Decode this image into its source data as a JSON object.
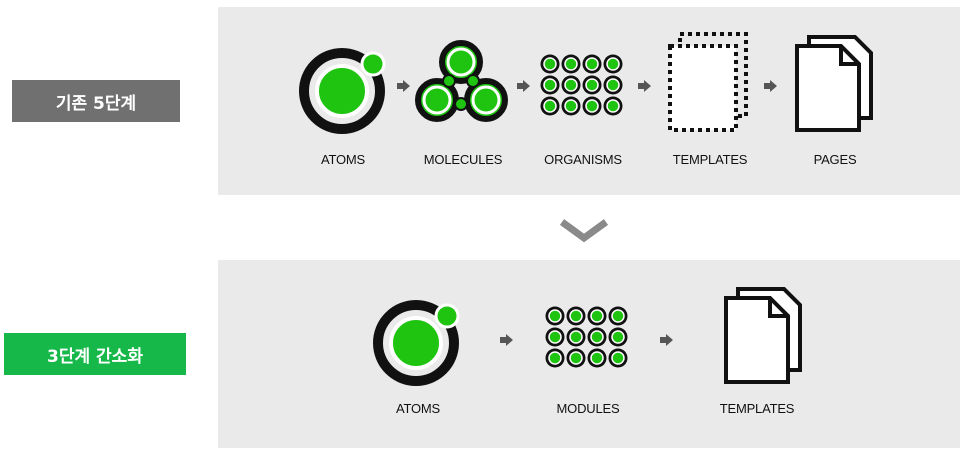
{
  "stages_original": {
    "tag": "기존 5단계",
    "items": [
      {
        "label": "ATOMS",
        "icon": "atom-icon"
      },
      {
        "label": "MOLECULES",
        "icon": "molecule-icon"
      },
      {
        "label": "ORGANISMS",
        "icon": "organism-grid-icon"
      },
      {
        "label": "TEMPLATES",
        "icon": "template-dotted-icon"
      },
      {
        "label": "PAGES",
        "icon": "pages-icon"
      }
    ]
  },
  "stages_simplified": {
    "tag": "3단계 간소화",
    "items": [
      {
        "label": "ATOMS",
        "icon": "atom-icon"
      },
      {
        "label": "MODULES",
        "icon": "organism-grid-icon"
      },
      {
        "label": "TEMPLATES",
        "icon": "pages-icon"
      }
    ]
  },
  "colors": {
    "accent_green": "#16b84a",
    "node_green": "#1fc411",
    "panel_gray": "#eaeaea",
    "tag_gray": "#707070",
    "outline": "#111111"
  },
  "transition_icon": "chevron-down-icon"
}
